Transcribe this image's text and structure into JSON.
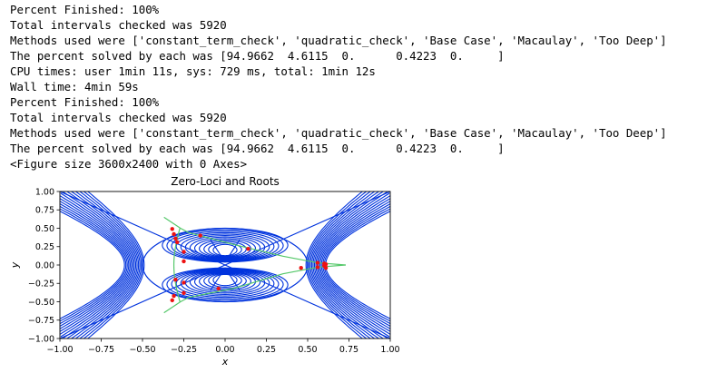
{
  "output_lines": [
    "Percent Finished: 100%",
    "Total intervals checked was 5920",
    "Methods used were ['constant_term_check', 'quadratic_check', 'Base Case', 'Macaulay', 'Too Deep']",
    "The percent solved by each was [94.9662  4.6115  0.      0.4223  0.     ]",
    "CPU times: user 1min 11s, sys: 729 ms, total: 1min 12s",
    "Wall time: 4min 59s",
    "Percent Finished: 100%",
    "Total intervals checked was 5920",
    "Methods used were ['constant_term_check', 'quadratic_check', 'Base Case', 'Macaulay', 'Too Deep']",
    "The percent solved by each was [94.9662  4.6115  0.      0.4223  0.     ]",
    "<Figure size 3600x2400 with 0 Axes>"
  ],
  "colors": {
    "contour": "#0033dd",
    "curve": "#55c86a",
    "roots": "#ee1111"
  },
  "chart_data": {
    "type": "scatter",
    "title": "Zero-Loci and Roots",
    "xlabel": "x",
    "ylabel": "y",
    "xlim": [
      -1.0,
      1.0
    ],
    "ylim": [
      -1.0,
      1.0
    ],
    "xticks": [
      "−1.00",
      "−0.75",
      "−0.50",
      "−0.25",
      "0.00",
      "0.25",
      "0.50",
      "0.75",
      "1.00"
    ],
    "yticks": [
      "1.00",
      "0.75",
      "0.50",
      "0.25",
      "0.00",
      "−0.25",
      "−0.50",
      "−0.75",
      "−1.00"
    ],
    "grid": false,
    "roots": {
      "x": [
        -0.32,
        -0.31,
        -0.3,
        -0.29,
        -0.25,
        -0.25,
        -0.15,
        0.14,
        -0.32,
        -0.31,
        -0.25,
        -0.25,
        -0.3,
        -0.04,
        0.46,
        0.56,
        0.6,
        0.61,
        0.56,
        0.6,
        0.61
      ],
      "y": [
        0.49,
        0.42,
        0.36,
        0.31,
        0.18,
        0.05,
        0.4,
        0.22,
        -0.48,
        -0.42,
        -0.38,
        -0.24,
        -0.2,
        -0.32,
        -0.04,
        -0.03,
        -0.01,
        -0.04,
        0.03,
        0.02,
        0.01
      ]
    }
  }
}
